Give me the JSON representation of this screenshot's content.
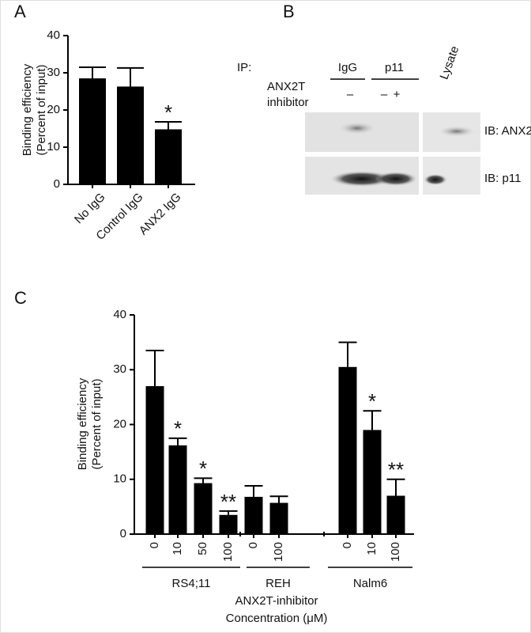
{
  "panel_labels": [
    "A",
    "B",
    "C"
  ],
  "chart_data": [
    {
      "type": "bar",
      "ylabel": [
        "Binding efficiency",
        "(Percent of input)"
      ],
      "categories": [
        "No IgG",
        "Control IgG",
        "ANX2 IgG"
      ],
      "values": [
        28.5,
        26.3,
        14.8
      ],
      "errors": [
        3,
        5,
        2
      ],
      "annotations": [
        null,
        null,
        "*"
      ],
      "color": "#000000",
      "ylim": [
        0,
        40
      ],
      "yticks": [
        0,
        10,
        20,
        30,
        40
      ]
    },
    {
      "type": "bar",
      "ylabel": [
        "Binding efficiency",
        "(Percent of input)"
      ],
      "xlabel": [
        "ANX2T-inhibitor",
        "Concentration (μM)"
      ],
      "categories": [
        "0",
        "10",
        "50",
        "100",
        "0",
        "100",
        "0",
        "10",
        "100"
      ],
      "groups": [
        {
          "name": "RS4;11",
          "count": 4
        },
        {
          "name": "REH",
          "count": 2
        },
        {
          "name": "Nalm6",
          "count": 3
        }
      ],
      "values": [
        27,
        16.2,
        9.3,
        3.5,
        6.8,
        5.7,
        30.5,
        19,
        7
      ],
      "errors": [
        6.5,
        1.3,
        0.9,
        0.7,
        2,
        1.2,
        4.5,
        3.5,
        3
      ],
      "annotations": [
        null,
        "*",
        "*",
        "**",
        null,
        null,
        null,
        "*",
        "**"
      ],
      "color": "#000000",
      "ylim": [
        0,
        40
      ],
      "yticks": [
        0,
        10,
        20,
        30,
        40
      ]
    }
  ],
  "blot": {
    "ip_label": "IP:",
    "lanes": [
      "IgG",
      "p11"
    ],
    "inhibitor_label": [
      "ANX2T",
      "inhibitor"
    ],
    "inhibitor_marks": [
      "–",
      "–",
      "+"
    ],
    "lysate": "Lysate",
    "ib_labels": [
      "IB: ANX2",
      "IB: p11"
    ]
  }
}
